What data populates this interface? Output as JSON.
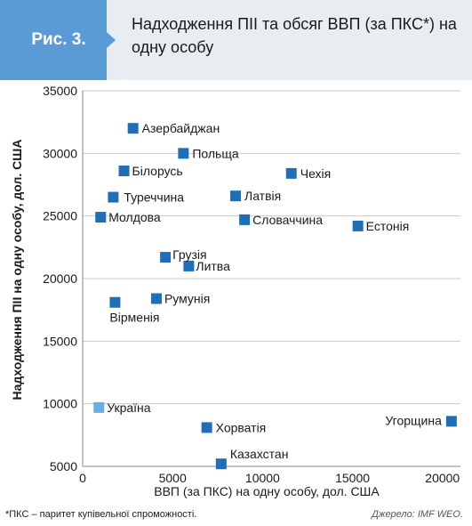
{
  "header": {
    "figure_label": "Рис. 3.",
    "title": "Надходження ПІІ та обсяг ВВП (за ПКС*) на одну особу"
  },
  "chart_data": {
    "type": "scatter",
    "xlabel": "ВВП (за ПКС) на одну особу, дол. США",
    "ylabel": "Надходження ПІІ на одну особу, дол. США",
    "xlim": [
      0,
      21000
    ],
    "ylim": [
      5000,
      35000
    ],
    "xticks": [
      0,
      5000,
      10000,
      15000,
      20000
    ],
    "yticks": [
      5000,
      10000,
      15000,
      20000,
      25000,
      30000,
      35000
    ],
    "grid": "horizontal",
    "point_color": "#1f6fb8",
    "highlight_color": "#6aaee0",
    "points": [
      {
        "label": "Азербайджан",
        "x": 2800,
        "y": 32000
      },
      {
        "label": "Польща",
        "x": 5600,
        "y": 30000
      },
      {
        "label": "Чехія",
        "x": 11600,
        "y": 28400
      },
      {
        "label": "Білорусь",
        "x": 2300,
        "y": 28600
      },
      {
        "label": "Туреччина",
        "x": 1700,
        "y": 26500
      },
      {
        "label": "Латвія",
        "x": 8500,
        "y": 26600
      },
      {
        "label": "Молдова",
        "x": 1000,
        "y": 24900
      },
      {
        "label": "Словаччина",
        "x": 9000,
        "y": 24700
      },
      {
        "label": "Естонія",
        "x": 15300,
        "y": 24200
      },
      {
        "label": "Грузія",
        "x": 4600,
        "y": 21700
      },
      {
        "label": "Литва",
        "x": 5900,
        "y": 21000
      },
      {
        "label": "Румунія",
        "x": 4100,
        "y": 18400
      },
      {
        "label": "Вірменія",
        "x": 1800,
        "y": 18100
      },
      {
        "label": "Україна",
        "x": 900,
        "y": 9700,
        "highlight": true
      },
      {
        "label": "Угорщина",
        "x": 20500,
        "y": 8600
      },
      {
        "label": "Хорватія",
        "x": 6900,
        "y": 8100
      },
      {
        "label": "Казахстан",
        "x": 7700,
        "y": 5200
      }
    ]
  },
  "footnote": "*ПКС – паритет купівельної спроможності.",
  "source": "Джерело: IMF WEO."
}
